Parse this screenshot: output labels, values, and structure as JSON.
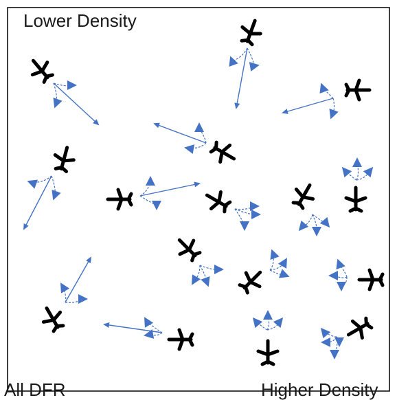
{
  "labels": {
    "top": "Lower Density",
    "bottom_left": "All DFR",
    "bottom_right": "Higher Density"
  },
  "colors": {
    "aircraft": "#000000",
    "drone": "#4472C4",
    "line": "#4472C4",
    "frame": "#000000"
  },
  "icon": "airplane-icon"
}
